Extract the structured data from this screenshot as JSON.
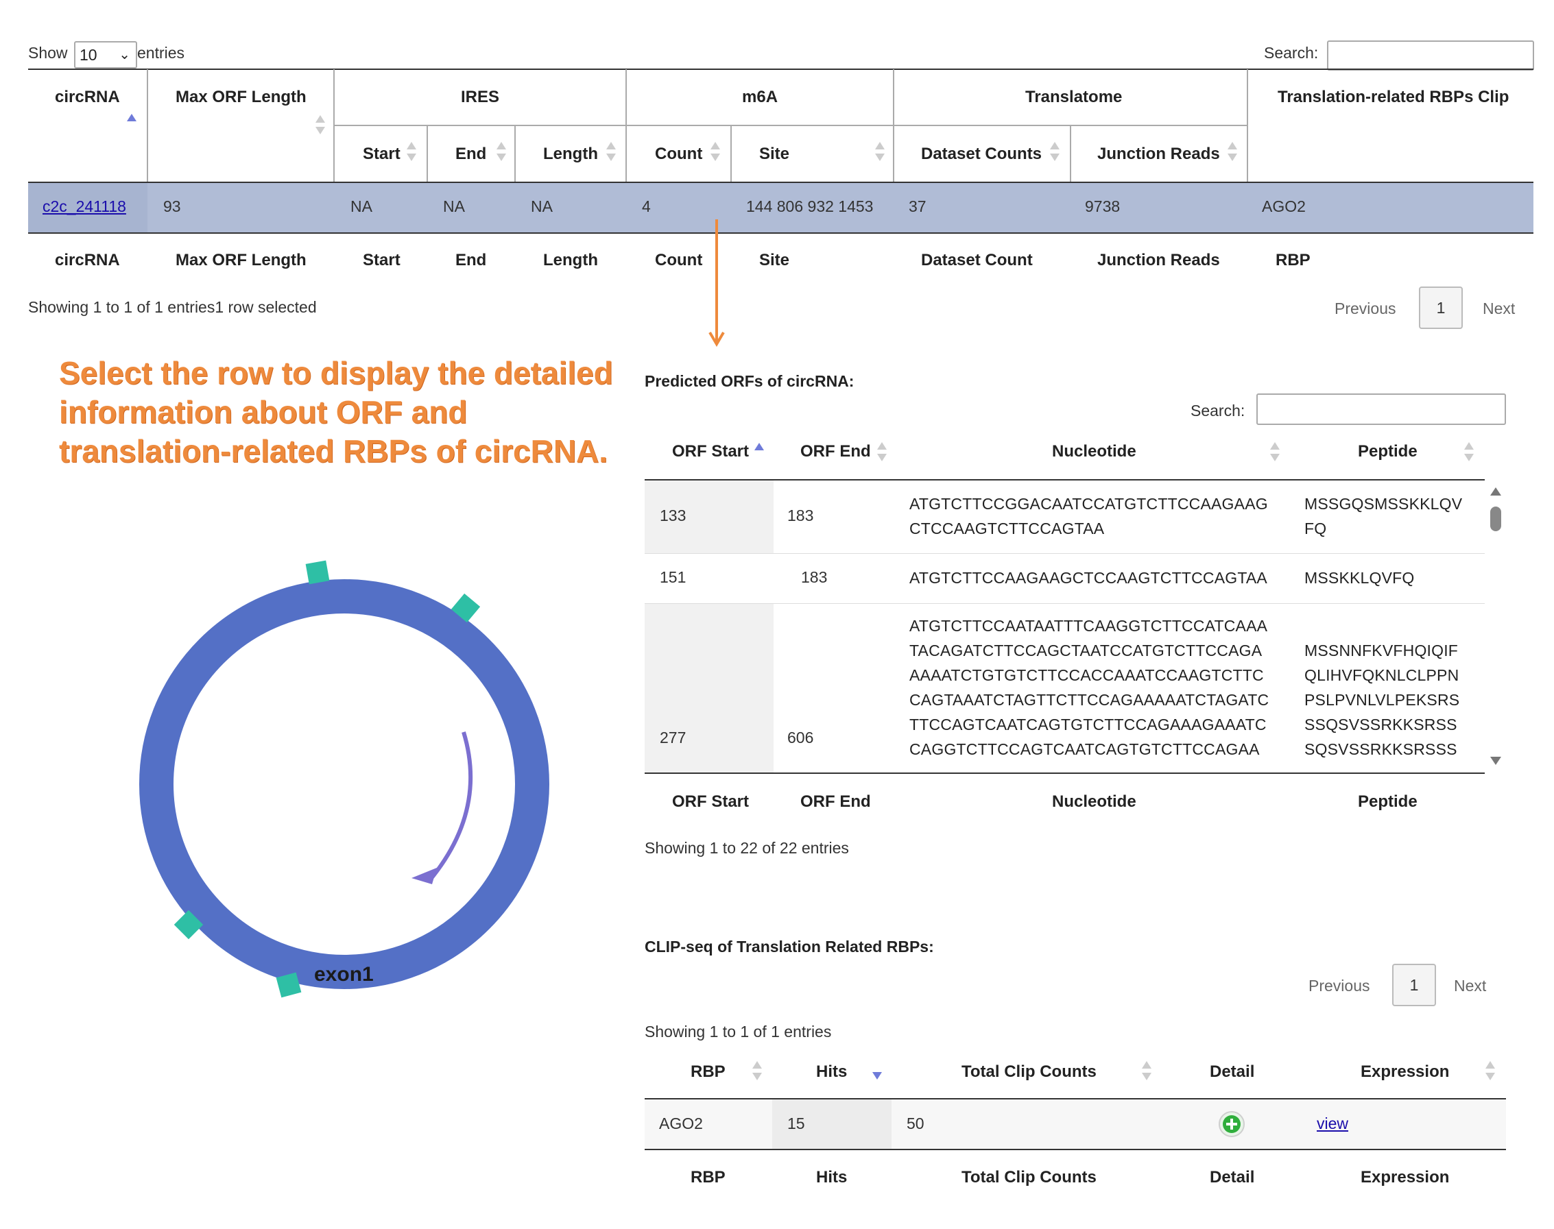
{
  "top": {
    "show_label": "Show",
    "page_size": "10",
    "entries_label": "entries",
    "search_label": "Search:",
    "search_value": ""
  },
  "main_table": {
    "col_circrna": "circRNA",
    "col_max_orf": "Max ORF Length",
    "group_ires": "IRES",
    "group_m6a": "m6A",
    "group_translatome": "Translatome",
    "group_rbps": "Translation-related RBPs Clip",
    "sub_start": "Start",
    "sub_end": "End",
    "sub_length": "Length",
    "sub_count": "Count",
    "sub_site": "Site",
    "sub_dataset_counts": "Dataset Counts",
    "sub_junction_reads": "Junction Reads",
    "row": {
      "circrna": "c2c_241118",
      "max_orf": "93",
      "start": "NA",
      "end": "NA",
      "length": "NA",
      "count": "4",
      "site": "144 806 932 1453",
      "dataset_counts": "37",
      "junction_reads": "9738",
      "rbp": "AGO2"
    },
    "footer": {
      "circrna": "circRNA",
      "max_orf": "Max ORF Length",
      "start": "Start",
      "end": "End",
      "length": "Length",
      "count": "Count",
      "site": "Site",
      "dataset_count": "Dataset Count",
      "junction_reads": "Junction Reads",
      "rbp": "RBP"
    },
    "info": "Showing 1 to 1 of 1 entries1 row selected",
    "prev": "Previous",
    "page": "1",
    "next": "Next"
  },
  "annotation": {
    "line1": "Select the row to display the detailed",
    "line2": "information about ORF and",
    "line3": "translation-related RBPs of circRNA.",
    "color": "#ee8a3c"
  },
  "diagram": {
    "exon_label": "exon1",
    "ring_color": "#5470c6",
    "marker_color": "#2ebfa5",
    "arc_color": "#7b6fd0"
  },
  "orf": {
    "title": "Predicted ORFs of circRNA:",
    "search_label": "Search:",
    "search_value": "",
    "col_start": "ORF Start",
    "col_end": "ORF End",
    "col_nuc": "Nucleotide",
    "col_pep": "Peptide",
    "rows": [
      {
        "start": "133",
        "end": "183",
        "nuc": "ATGTCTTCCGGACAATCCATGTCTTCCAAGAAG\nCTCCAAGTCTTCCAGTAA",
        "pep": "MSSGQSMSSKKLQV\nFQ"
      },
      {
        "start": "151",
        "end": "183",
        "nuc": "ATGTCTTCCAAGAAGCTCCAAGTCTTCCAGTAA",
        "pep": "MSSKKLQVFQ"
      },
      {
        "start": "277",
        "end": "606",
        "nuc": "ATGTCTTCCAATAATTTCAAGGTCTTCCATCAAA\nTACAGATCTTCCAGCTAATCCATGTCTTCCAGA\nAAAATCTGTGTCTTCCACCAAATCCAAGTCTTC\nCAGTAAATCTAGTTCTTCCAGAAAAATCTAGATC\nTTCCAGTCAATCAGTGTCTTCCAGAAAGAAATC\nCAGGTCTTCCAGTCAATCAGTGTCTTCCAGAA",
        "pep": "\nMSSNNFKVFHQIQIF\nQLIHVFQKNLCLPPN\nPSLPVNLVLPEKSRS\nSSQSVSSRKKSRSS\nSQSVSSRKKSRSSS"
      }
    ],
    "footer_start": "ORF Start",
    "footer_end": "ORF End",
    "footer_nuc": "Nucleotide",
    "footer_pep": "Peptide",
    "info": "Showing 1 to 22 of 22 entries"
  },
  "clip": {
    "title": "CLIP-seq of Translation Related RBPs:",
    "prev": "Previous",
    "page": "1",
    "next": "Next",
    "info": "Showing 1 to 1 of 1 entries",
    "col_rbp": "RBP",
    "col_hits": "Hits",
    "col_total": "Total Clip Counts",
    "col_detail": "Detail",
    "col_expr": "Expression",
    "row": {
      "rbp": "AGO2",
      "hits": "15",
      "total": "50",
      "expr": "view"
    },
    "footer_rbp": "RBP",
    "footer_hits": "Hits",
    "footer_total": "Total Clip Counts",
    "footer_detail": "Detail",
    "footer_expr": "Expression"
  }
}
